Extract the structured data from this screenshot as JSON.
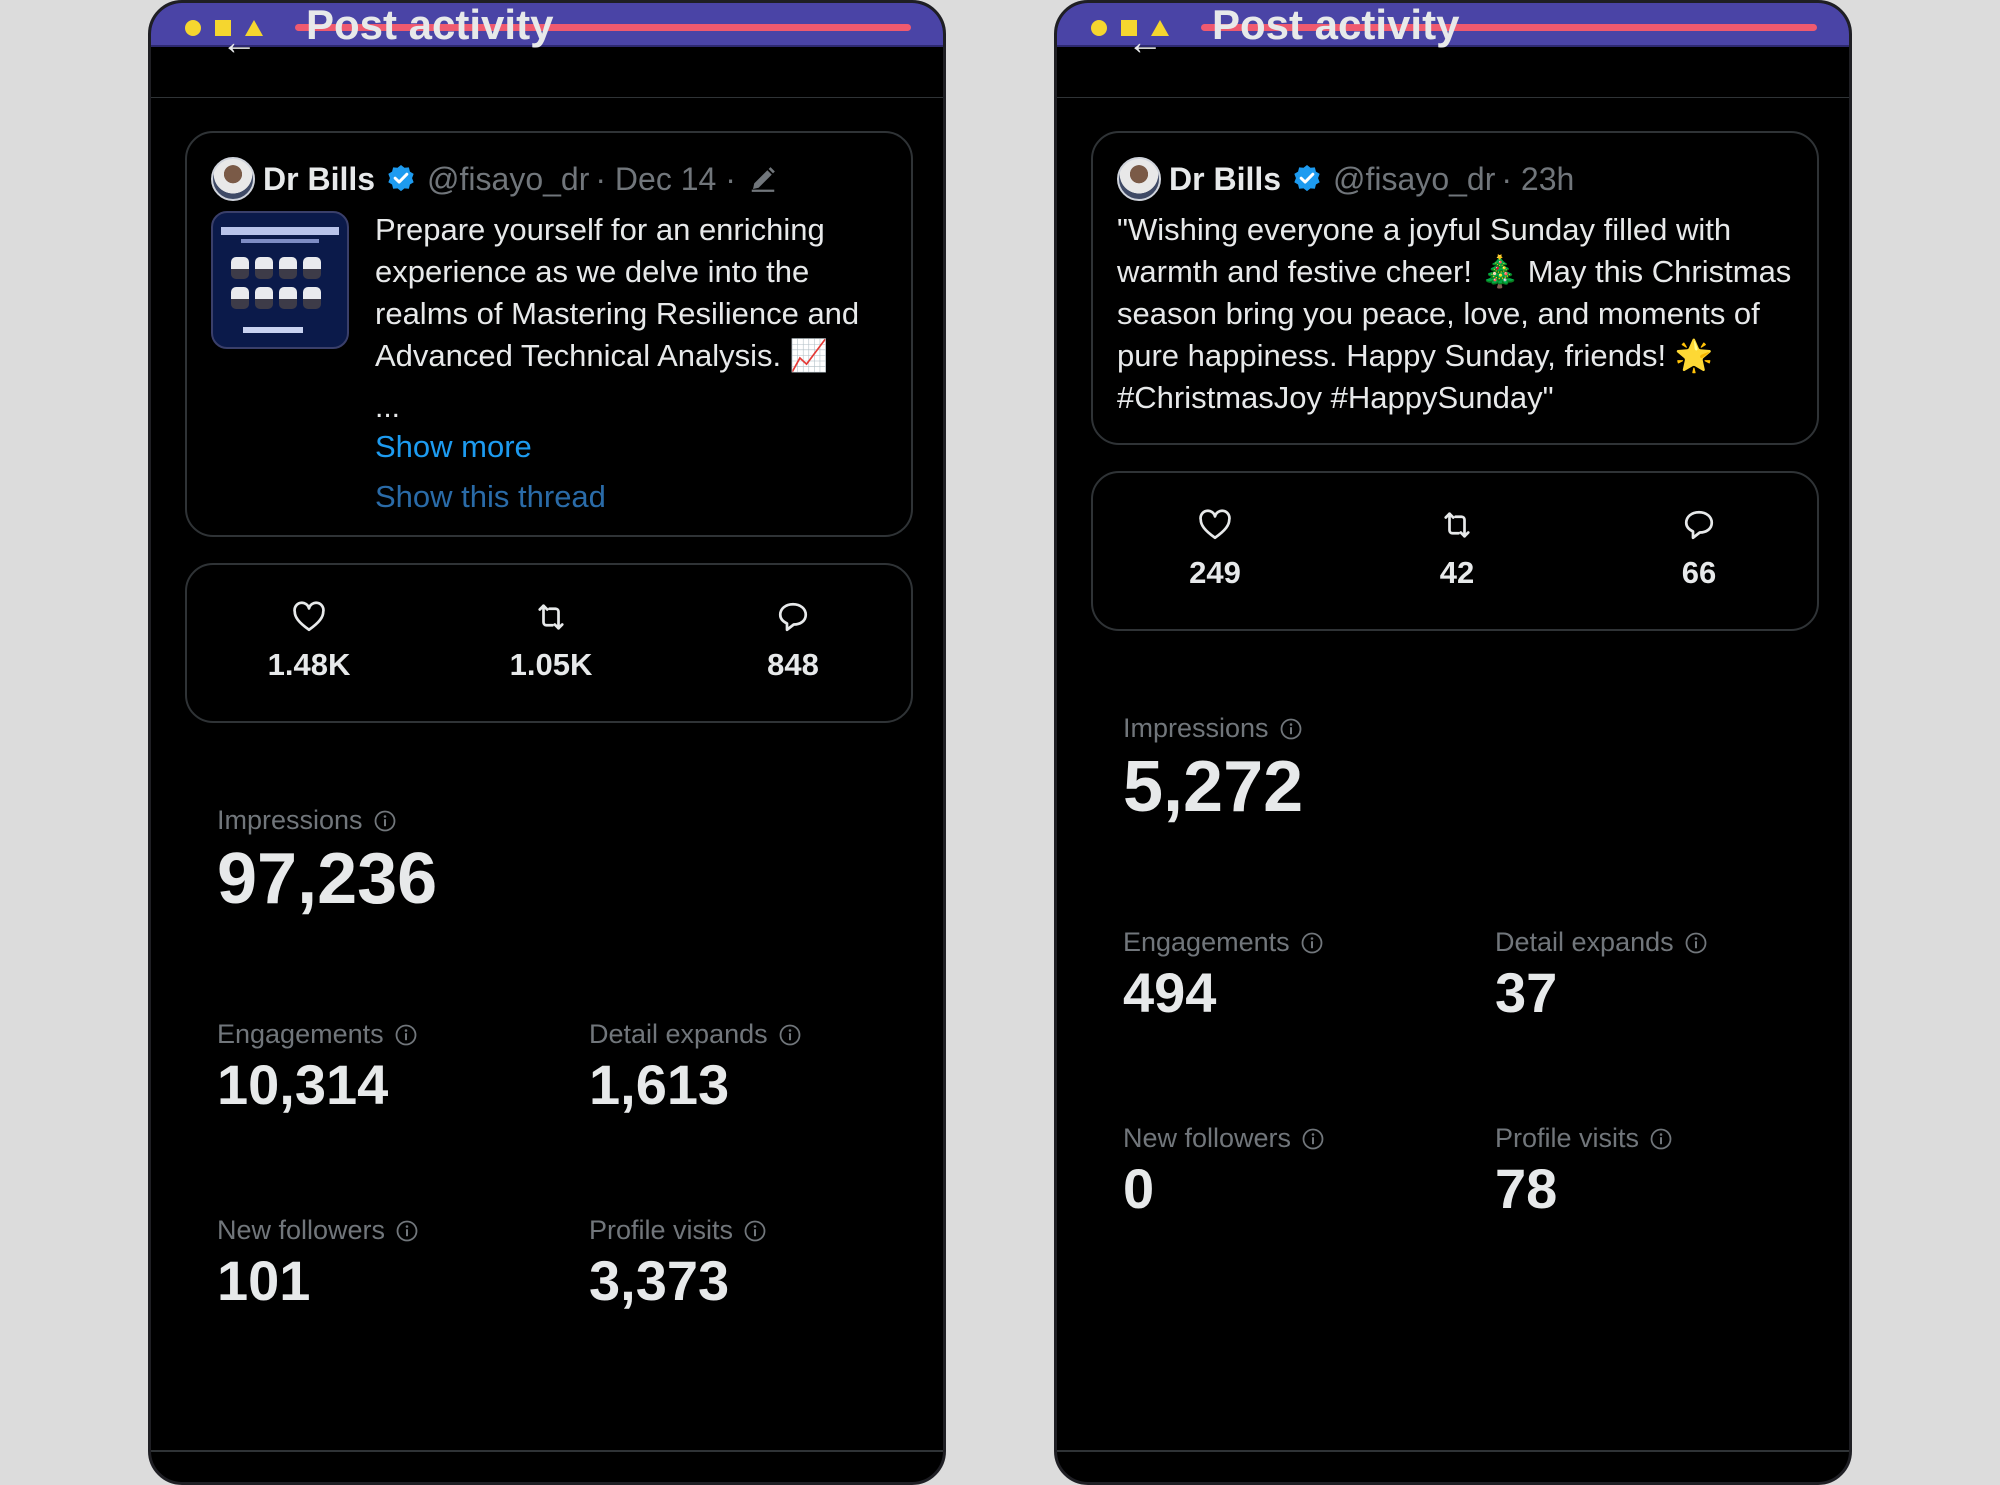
{
  "colors": {
    "background": "#dcdcdc",
    "screen": "#000000",
    "topbar": "#4a44a6",
    "progress": "#ef5a6f",
    "window_dots": "#f5d62f",
    "link": "#1d9bf0",
    "muted": "#71767b",
    "text": "#e7e9ea",
    "verified": "#1d9bf0"
  },
  "screens": [
    {
      "header": {
        "title": "Post activity",
        "back_icon": "back-arrow-icon"
      },
      "post": {
        "author_name": "Dr Bills",
        "handle": "@fisayo_dr",
        "meta": "· Dec 14 ·",
        "text": "Prepare yourself for an enriching experience as we delve into the realms of Mastering Resilience and Advanced Technical Analysis. 📈",
        "ellipsis": "...",
        "show_more": "Show more",
        "show_thread": "Show this thread"
      },
      "stats": {
        "likes": "1.48K",
        "reposts": "1.05K",
        "replies": "848"
      },
      "metrics": {
        "impressions": {
          "label": "Impressions",
          "value": "97,236"
        },
        "engagements": {
          "label": "Engagements",
          "value": "10,314"
        },
        "detail_expands": {
          "label": "Detail expands",
          "value": "1,613"
        },
        "new_followers": {
          "label": "New followers",
          "value": "101"
        },
        "profile_visits": {
          "label": "Profile visits",
          "value": "3,373"
        }
      }
    },
    {
      "header": {
        "title": "Post activity",
        "back_icon": "back-arrow-icon"
      },
      "post": {
        "author_name": "Dr Bills",
        "handle": "@fisayo_dr",
        "meta": "· 23h",
        "text": "\"Wishing everyone a joyful Sunday filled with warmth and festive cheer! 🎄 May this Christmas season bring you peace, love, and moments of pure happiness. Happy Sunday, friends! 🌟 #ChristmasJoy #HappySunday\""
      },
      "stats": {
        "likes": "249",
        "reposts": "42",
        "replies": "66"
      },
      "metrics": {
        "impressions": {
          "label": "Impressions",
          "value": "5,272"
        },
        "engagements": {
          "label": "Engagements",
          "value": "494"
        },
        "detail_expands": {
          "label": "Detail expands",
          "value": "37"
        },
        "new_followers": {
          "label": "New followers",
          "value": "0"
        },
        "profile_visits": {
          "label": "Profile visits",
          "value": "78"
        }
      }
    }
  ]
}
